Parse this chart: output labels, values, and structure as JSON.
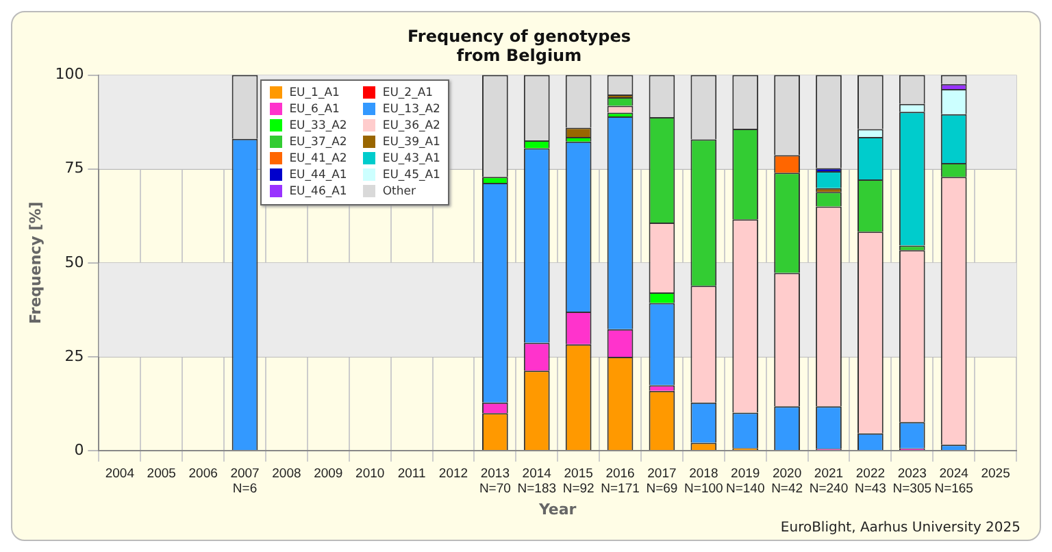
{
  "chart_data": {
    "type": "bar",
    "title": "Frequency of genotypes\nfrom Belgium",
    "xlabel": "Year",
    "ylabel": "Frequency [%]",
    "annotations": [
      "EuroBlight, Aarhus University 2025"
    ],
    "categories": [
      "2004",
      "2005",
      "2006",
      "2007\nN=6",
      "2008",
      "2009",
      "2010",
      "2011",
      "2012",
      "2013\nN=70",
      "2014\nN=183",
      "2015\nN=92",
      "2016\nN=171",
      "2017\nN=69",
      "2018\nN=100",
      "2019\nN=140",
      "2020\nN=42",
      "2021\nN=240",
      "2022\nN=43",
      "2023\nN=305",
      "2024\nN=165",
      "2025"
    ],
    "stacked": true,
    "series": [
      {
        "name": "EU_1_A1",
        "color": "#ff9900",
        "values": [
          null,
          null,
          null,
          null,
          null,
          null,
          null,
          null,
          null,
          10,
          21.3,
          28.3,
          25,
          15.9,
          2.1,
          0.7,
          null,
          null,
          null,
          null,
          null,
          null
        ]
      },
      {
        "name": "EU_2_A1",
        "color": "#ff0000",
        "values": [
          null,
          null,
          null,
          null,
          null,
          null,
          null,
          null,
          null,
          null,
          null,
          null,
          null,
          null,
          null,
          null,
          null,
          null,
          null,
          null,
          null,
          null
        ]
      },
      {
        "name": "EU_6_A1",
        "color": "#ff33cc",
        "values": [
          null,
          null,
          null,
          null,
          null,
          null,
          null,
          null,
          null,
          2.8,
          7.4,
          8.7,
          7.3,
          1.5,
          null,
          null,
          null,
          0.5,
          null,
          0.6,
          null,
          null
        ]
      },
      {
        "name": "EU_13_A2",
        "color": "#3399ff",
        "values": [
          null,
          null,
          null,
          83,
          null,
          null,
          null,
          null,
          null,
          58.5,
          51.8,
          45.3,
          56.7,
          21.9,
          10.7,
          9.4,
          11.8,
          11.3,
          4.6,
          7.0,
          1.6,
          null
        ]
      },
      {
        "name": "EU_33_A2",
        "color": "#00ff00",
        "values": [
          null,
          null,
          null,
          null,
          null,
          null,
          null,
          null,
          null,
          1.6,
          2.1,
          1.2,
          1.0,
          2.8,
          null,
          null,
          null,
          null,
          null,
          null,
          null,
          null
        ]
      },
      {
        "name": "EU_36_A2",
        "color": "#ffcccc",
        "values": [
          null,
          null,
          null,
          null,
          null,
          null,
          null,
          null,
          null,
          null,
          null,
          null,
          1.8,
          18.6,
          31.1,
          51.5,
          35.5,
          53.2,
          53.7,
          45.8,
          71.3,
          null
        ]
      },
      {
        "name": "EU_37_A2",
        "color": "#33cc33",
        "values": [
          null,
          null,
          null,
          null,
          null,
          null,
          null,
          null,
          null,
          null,
          null,
          null,
          2.3,
          28.1,
          39,
          24.1,
          26.7,
          3.9,
          13.9,
          1.2,
          3.7,
          null
        ]
      },
      {
        "name": "EU_39_A1",
        "color": "#996600",
        "values": [
          null,
          null,
          null,
          null,
          null,
          null,
          null,
          null,
          null,
          null,
          null,
          2.5,
          0.7,
          null,
          null,
          null,
          null,
          1.0,
          null,
          null,
          null,
          null
        ]
      },
      {
        "name": "EU_41_A2",
        "color": "#ff6600",
        "values": [
          null,
          null,
          null,
          null,
          null,
          null,
          null,
          null,
          null,
          null,
          null,
          null,
          null,
          null,
          null,
          null,
          4.7,
          null,
          null,
          null,
          null,
          null
        ]
      },
      {
        "name": "EU_43_A1",
        "color": "#00cccc",
        "values": [
          null,
          null,
          null,
          null,
          null,
          null,
          null,
          null,
          null,
          null,
          null,
          null,
          null,
          null,
          null,
          null,
          null,
          4.5,
          11.3,
          35.6,
          13,
          null
        ]
      },
      {
        "name": "EU_44_A1",
        "color": "#0000cc",
        "values": [
          null,
          null,
          null,
          null,
          null,
          null,
          null,
          null,
          null,
          null,
          null,
          null,
          null,
          null,
          null,
          null,
          null,
          0.8,
          null,
          null,
          null,
          null
        ]
      },
      {
        "name": "EU_45_A1",
        "color": "#ccffff",
        "values": [
          null,
          null,
          null,
          null,
          null,
          null,
          null,
          null,
          null,
          null,
          null,
          null,
          null,
          null,
          null,
          null,
          null,
          null,
          2.1,
          2.1,
          6.7,
          null
        ]
      },
      {
        "name": "EU_46_A1",
        "color": "#9933ff",
        "values": [
          null,
          null,
          null,
          null,
          null,
          null,
          null,
          null,
          null,
          null,
          null,
          null,
          null,
          null,
          null,
          null,
          null,
          null,
          null,
          null,
          1.3,
          null
        ]
      },
      {
        "name": "Other",
        "color": "#d9d9d9",
        "values": [
          null,
          null,
          null,
          17,
          null,
          null,
          null,
          null,
          null,
          27.1,
          17.4,
          14,
          5.2,
          11.2,
          17.1,
          14.3,
          21.3,
          24.8,
          14.4,
          7.7,
          2.4,
          null
        ]
      }
    ],
    "ylim": [
      0,
      100
    ],
    "yticks": [
      0,
      25,
      50,
      75,
      100
    ],
    "bands": [
      {
        "axis": "y",
        "from": 25,
        "to": 50,
        "color": "#ebebeb"
      },
      {
        "axis": "y",
        "from": 75,
        "to": 100,
        "color": "#ebebeb"
      }
    ],
    "grid": true,
    "legend": "top left"
  }
}
